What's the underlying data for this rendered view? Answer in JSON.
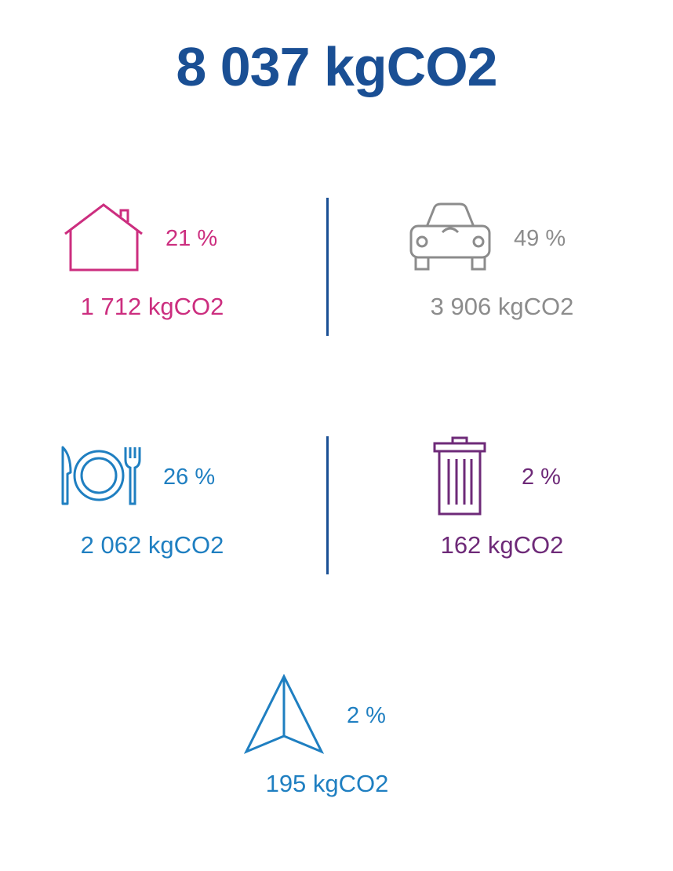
{
  "total": "8 037 kgCO2",
  "categories": [
    {
      "key": "housing",
      "icon": "house-icon",
      "percent": "21 %",
      "amount": "1 712 kgCO2",
      "color": "#cc2e7f"
    },
    {
      "key": "transport",
      "icon": "car-icon",
      "percent": "49 %",
      "amount": "3 906 kgCO2",
      "color": "#8c8c8c"
    },
    {
      "key": "food",
      "icon": "cutlery-icon",
      "percent": "26 %",
      "amount": "2 062 kgCO2",
      "color": "#1f7fc1"
    },
    {
      "key": "waste",
      "icon": "trash-icon",
      "percent": "2 %",
      "amount": "162 kgCO2",
      "color": "#6e2a78"
    },
    {
      "key": "other",
      "icon": "paper-plane-icon",
      "percent": "2 %",
      "amount": "195 kgCO2",
      "color": "#1f7fc1"
    }
  ],
  "colors": {
    "total": "#1a4f94",
    "divider": "#1a4f94"
  }
}
